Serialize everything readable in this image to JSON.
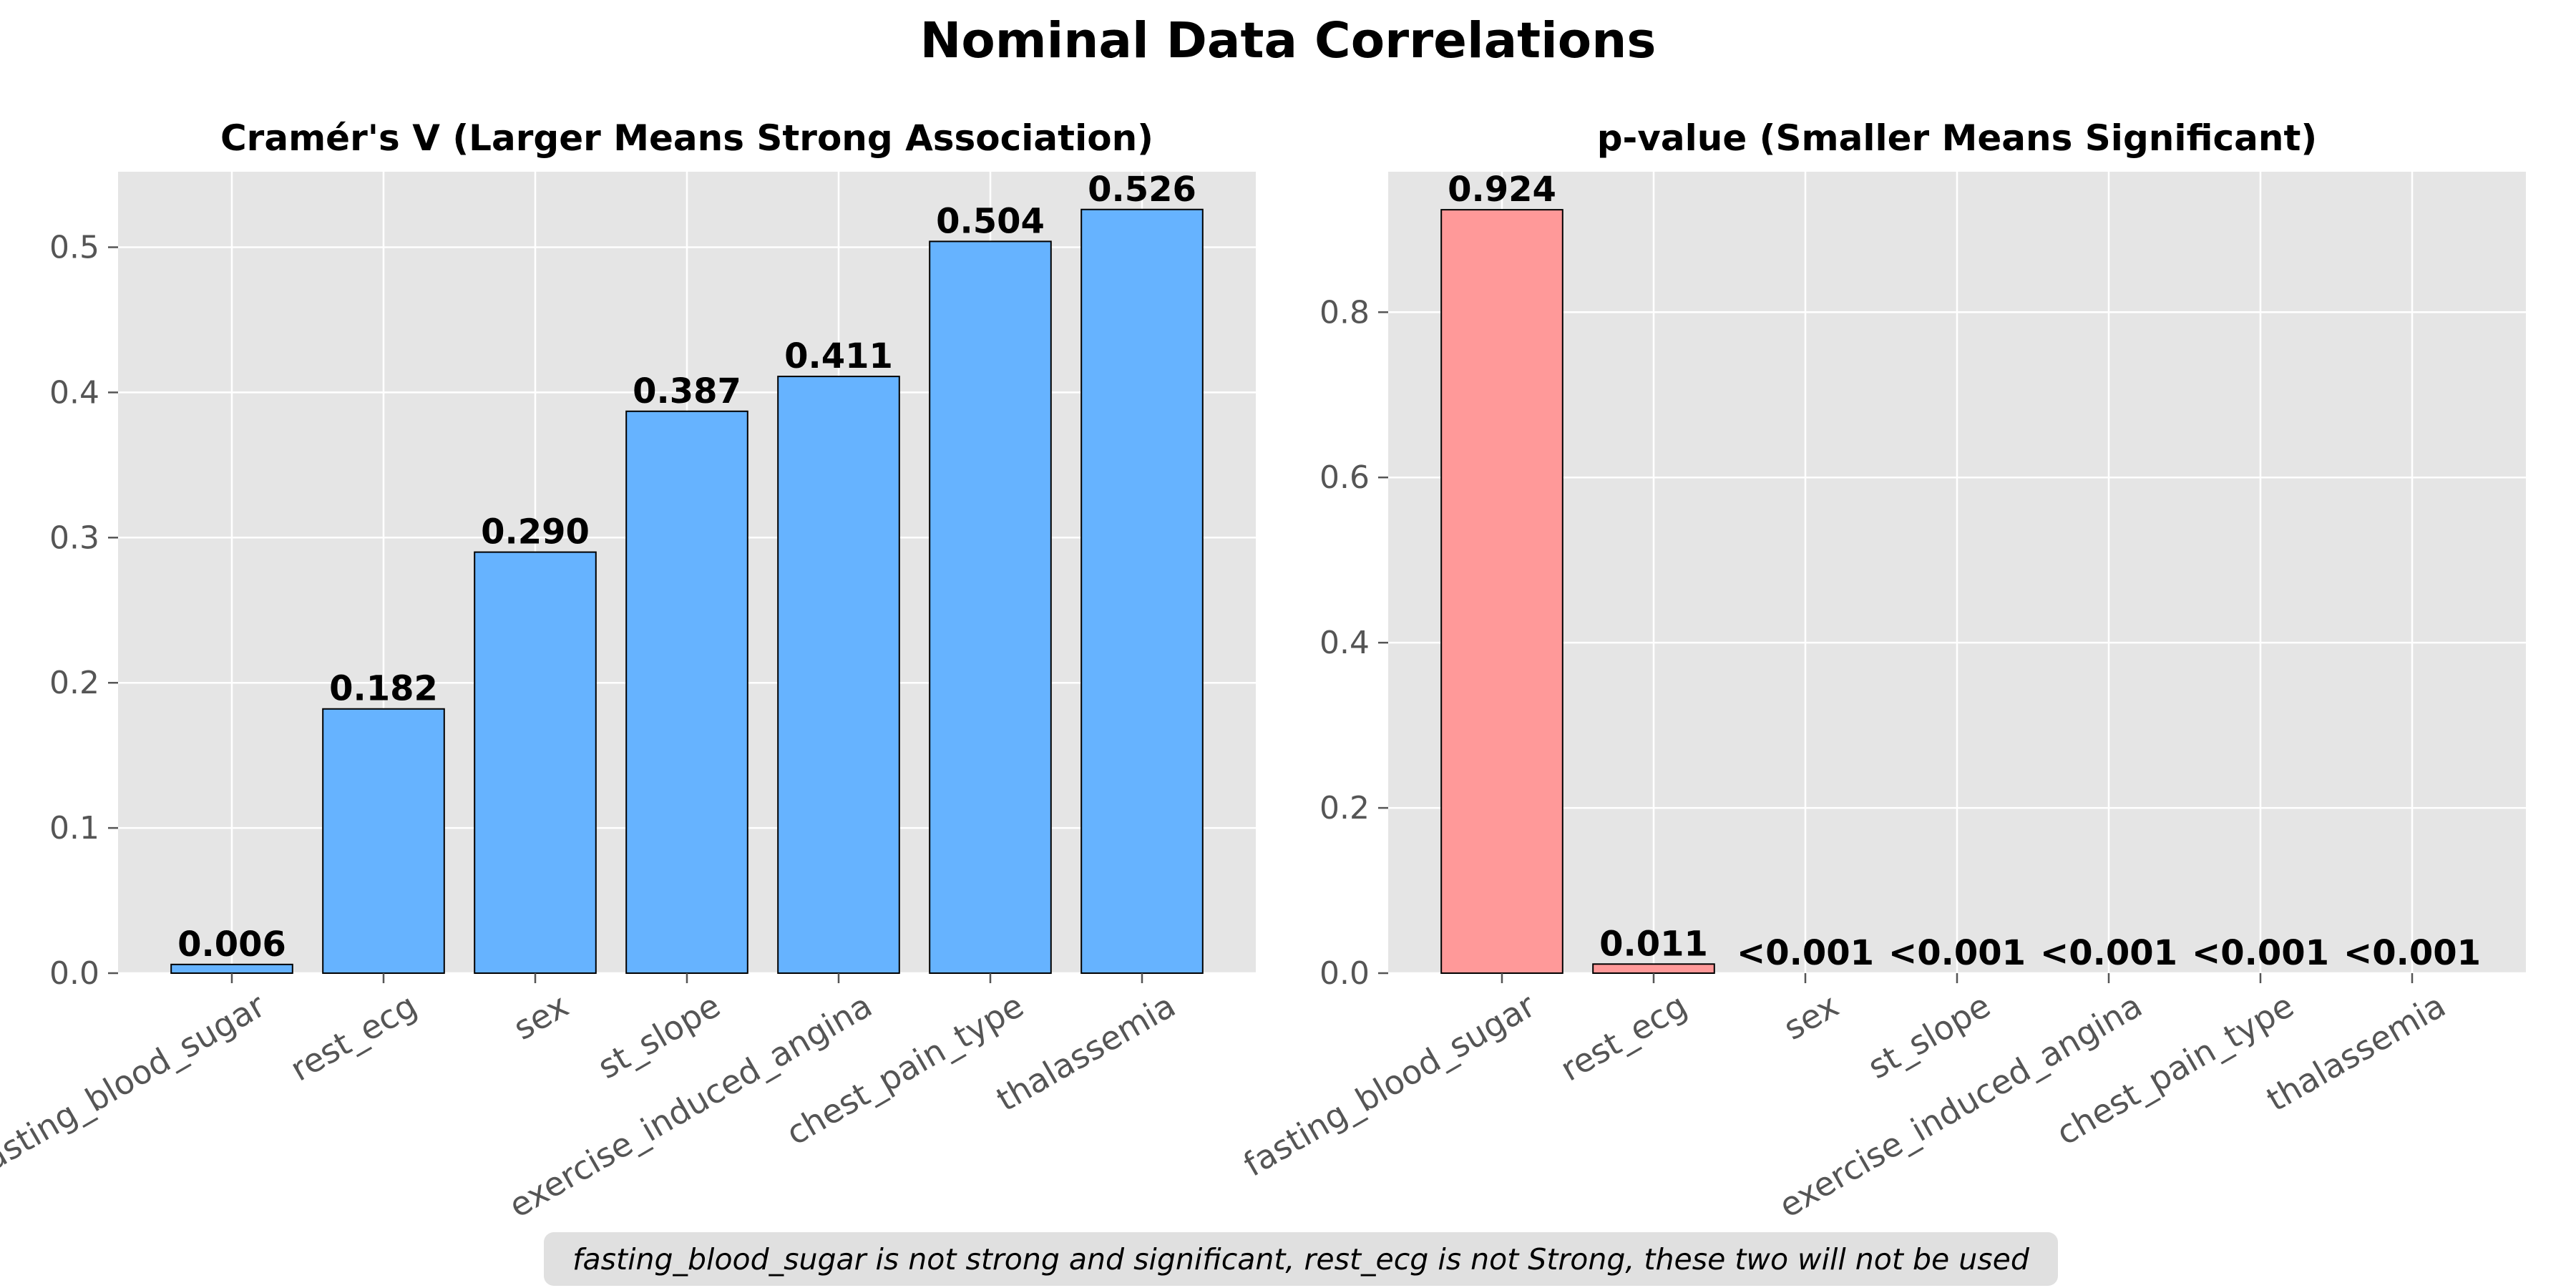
{
  "figure_title": "Nominal Data Correlations",
  "footnote": "fasting_blood_sugar is not strong and significant, rest_ecg is not Strong, these two will not be used",
  "chart_data": [
    {
      "type": "bar",
      "title": "Cramér's V (Larger Means Strong Association)",
      "categories": [
        "fasting_blood_sugar",
        "rest_ecg",
        "sex",
        "st_slope",
        "exercise_induced_angina",
        "chest_pain_type",
        "thalassemia"
      ],
      "values": [
        0.006,
        0.182,
        0.29,
        0.387,
        0.411,
        0.504,
        0.526
      ],
      "labels": [
        "0.006",
        "0.182",
        "0.290",
        "0.387",
        "0.411",
        "0.504",
        "0.526"
      ],
      "yticks": [
        "0.0",
        "0.1",
        "0.2",
        "0.3",
        "0.4",
        "0.5"
      ],
      "ylim": [
        0,
        0.552
      ],
      "bar_color": "#66b3ff",
      "xlabel": "",
      "ylabel": ""
    },
    {
      "type": "bar",
      "title": "p-value (Smaller Means Significant)",
      "categories": [
        "fasting_blood_sugar",
        "rest_ecg",
        "sex",
        "st_slope",
        "exercise_induced_angina",
        "chest_pain_type",
        "thalassemia"
      ],
      "values": [
        0.924,
        0.011,
        0.0,
        0.0,
        0.0,
        0.0,
        0.0
      ],
      "labels": [
        "0.924",
        "0.011",
        "<0.001",
        "<0.001",
        "<0.001",
        "<0.001",
        "<0.001"
      ],
      "yticks": [
        "0.0",
        "0.2",
        "0.4",
        "0.6",
        "0.8"
      ],
      "ylim": [
        0,
        0.97
      ],
      "bar_color": "#ff9999",
      "xlabel": "",
      "ylabel": ""
    }
  ]
}
